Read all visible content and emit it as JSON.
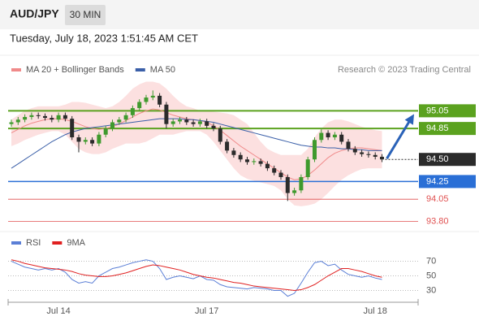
{
  "header": {
    "symbol": "AUD/JPY",
    "interval": "30 MIN",
    "timestamp": "Tuesday, July 18, 2023 1:51:45 AM CET"
  },
  "credit": "Research © 2023 Trading Central",
  "chart_data": [
    {
      "type": "candlestick",
      "categories": [
        null,
        null,
        null,
        null,
        null,
        null,
        null,
        "Jul 14",
        null,
        null,
        null,
        null,
        null,
        null,
        null,
        null,
        null,
        null,
        null,
        null,
        null,
        null,
        null,
        null,
        null,
        null,
        null,
        null,
        null,
        "Jul 17",
        null,
        null,
        null,
        null,
        null,
        null,
        null,
        null,
        null,
        null,
        null,
        null,
        null,
        null,
        null,
        null,
        null,
        null,
        null,
        null,
        null,
        null,
        null,
        null,
        "Jul 18",
        null
      ],
      "open": [
        94.9,
        94.92,
        94.95,
        94.98,
        95.0,
        94.99,
        94.97,
        94.95,
        95.0,
        94.96,
        94.75,
        94.7,
        94.72,
        94.68,
        94.78,
        94.85,
        94.92,
        94.95,
        95.0,
        95.08,
        95.15,
        95.2,
        95.22,
        95.12,
        94.9,
        94.93,
        94.95,
        94.92,
        94.9,
        94.93,
        94.88,
        94.85,
        94.7,
        94.6,
        94.55,
        94.5,
        94.47,
        94.48,
        94.45,
        94.4,
        94.35,
        94.3,
        94.12,
        94.15,
        94.3,
        94.5,
        94.72,
        94.8,
        94.75,
        94.78,
        94.7,
        94.62,
        94.58,
        94.56,
        94.55,
        94.53
      ],
      "high": [
        94.95,
        94.98,
        95.01,
        95.03,
        95.03,
        95.02,
        95.0,
        95.03,
        95.03,
        94.99,
        94.78,
        94.75,
        94.75,
        94.81,
        94.88,
        94.95,
        94.98,
        95.03,
        95.11,
        95.18,
        95.23,
        95.28,
        95.25,
        95.15,
        94.96,
        94.98,
        94.98,
        94.95,
        94.96,
        94.96,
        94.91,
        94.88,
        94.73,
        94.63,
        94.58,
        94.53,
        94.51,
        94.51,
        94.48,
        94.43,
        94.38,
        94.33,
        94.18,
        94.33,
        94.53,
        94.75,
        94.84,
        94.83,
        94.81,
        94.81,
        94.73,
        94.65,
        94.61,
        94.59,
        94.58,
        94.56
      ],
      "low": [
        94.87,
        94.89,
        94.92,
        94.95,
        94.96,
        94.94,
        94.92,
        94.92,
        94.93,
        94.72,
        94.58,
        94.67,
        94.65,
        94.65,
        94.75,
        94.82,
        94.89,
        94.92,
        94.97,
        95.05,
        95.12,
        95.17,
        95.09,
        94.85,
        94.87,
        94.9,
        94.89,
        94.87,
        94.87,
        94.85,
        94.82,
        94.67,
        94.57,
        94.52,
        94.47,
        94.44,
        94.44,
        94.42,
        94.37,
        94.32,
        94.27,
        94.03,
        94.09,
        94.12,
        94.27,
        94.47,
        94.69,
        94.72,
        94.72,
        94.67,
        94.59,
        94.55,
        94.53,
        94.52,
        94.5,
        94.47
      ],
      "close": [
        94.92,
        94.95,
        94.98,
        95.0,
        94.99,
        94.97,
        94.95,
        95.0,
        94.96,
        94.75,
        94.7,
        94.72,
        94.68,
        94.78,
        94.85,
        94.92,
        94.95,
        95.0,
        95.08,
        95.15,
        95.2,
        95.22,
        95.12,
        94.9,
        94.93,
        94.95,
        94.92,
        94.9,
        94.93,
        94.88,
        94.85,
        94.7,
        94.6,
        94.55,
        94.5,
        94.47,
        94.48,
        94.45,
        94.4,
        94.35,
        94.3,
        94.12,
        94.15,
        94.3,
        94.5,
        94.72,
        94.8,
        94.75,
        94.78,
        94.7,
        94.62,
        94.58,
        94.56,
        94.55,
        94.53,
        94.5
      ],
      "color_up": "#3f9a2d",
      "color_down": "#2b2b2b",
      "series": [
        {
          "name": "MA 20 + Bollinger Bands",
          "color": "#f08a8a",
          "band_color": "#fbd3d3",
          "values": [
            94.8,
            94.84,
            94.88,
            94.91,
            94.93,
            94.95,
            94.96,
            94.96,
            94.95,
            94.93,
            94.9,
            94.87,
            94.85,
            94.84,
            94.85,
            94.87,
            94.9,
            94.94,
            94.98,
            95.02,
            95.05,
            95.07,
            95.06,
            95.03,
            95.0,
            94.98,
            94.96,
            94.95,
            94.94,
            94.92,
            94.88,
            94.83,
            94.77,
            94.71,
            94.65,
            94.6,
            94.55,
            94.5,
            94.45,
            94.4,
            94.35,
            94.3,
            94.27,
            94.28,
            94.32,
            94.38,
            94.45,
            94.52,
            94.57,
            94.6,
            94.62,
            94.63,
            94.63,
            94.62,
            94.61,
            94.6
          ],
          "upper": [
            94.95,
            95.0,
            95.05,
            95.08,
            95.1,
            95.1,
            95.1,
            95.1,
            95.12,
            95.15,
            95.15,
            95.14,
            95.12,
            95.1,
            95.08,
            95.1,
            95.15,
            95.22,
            95.3,
            95.35,
            95.38,
            95.38,
            95.36,
            95.3,
            95.22,
            95.15,
            95.1,
            95.08,
            95.05,
            95.05,
            95.04,
            95.03,
            95.02,
            95.0,
            94.95,
            94.9,
            94.8,
            94.7,
            94.62,
            94.58,
            94.55,
            94.55,
            94.55,
            94.55,
            94.62,
            94.75,
            94.85,
            94.92,
            94.95,
            94.95,
            94.93,
            94.9,
            94.87,
            94.85,
            94.83,
            94.82
          ],
          "lower": [
            94.65,
            94.68,
            94.72,
            94.75,
            94.78,
            94.8,
            94.82,
            94.82,
            94.78,
            94.7,
            94.62,
            94.58,
            94.56,
            94.56,
            94.58,
            94.62,
            94.65,
            94.68,
            94.68,
            94.68,
            94.7,
            94.74,
            94.78,
            94.78,
            94.78,
            94.8,
            94.82,
            94.82,
            94.82,
            94.78,
            94.7,
            94.6,
            94.5,
            94.4,
            94.32,
            94.28,
            94.26,
            94.24,
            94.22,
            94.2,
            94.15,
            94.05,
            93.98,
            93.97,
            93.98,
            94.0,
            94.05,
            94.12,
            94.2,
            94.27,
            94.32,
            94.36,
            94.39,
            94.4,
            94.4,
            94.4
          ]
        },
        {
          "name": "MA 50",
          "color": "#3a5fa8",
          "values": [
            94.4,
            94.45,
            94.5,
            94.55,
            94.6,
            94.65,
            94.7,
            94.74,
            94.78,
            94.81,
            94.83,
            94.85,
            94.86,
            94.87,
            94.88,
            94.89,
            94.9,
            94.91,
            94.92,
            94.93,
            94.94,
            94.95,
            94.96,
            94.96,
            94.96,
            94.96,
            94.95,
            94.95,
            94.94,
            94.93,
            94.92,
            94.9,
            94.88,
            94.86,
            94.84,
            94.82,
            94.8,
            94.78,
            94.76,
            94.74,
            94.72,
            94.7,
            94.68,
            94.66,
            94.65,
            94.64,
            94.64,
            94.63,
            94.63,
            94.62,
            94.62,
            94.61,
            94.61,
            94.6,
            94.6,
            94.6
          ]
        }
      ],
      "ylim": [
        93.73,
        95.43
      ],
      "levels": {
        "values": [
          95.05,
          94.85,
          94.5,
          94.25,
          94.05,
          93.8
        ],
        "value_labels": [
          "95.05",
          "94.85",
          "94.50",
          "94.25",
          "94.05",
          "93.80"
        ],
        "colors": [
          "#5ba21f",
          "#5ba21f",
          "#2b2b2b",
          "#2a6fd6",
          "#e05050",
          "#e05050"
        ],
        "styles": [
          "box",
          "box",
          "dotted",
          "box",
          "text",
          "text"
        ]
      },
      "forecast_color": "#2a62b8"
    },
    {
      "type": "line",
      "series": [
        {
          "name": "RSI",
          "color": "#5b7fd6",
          "values": [
            70,
            66,
            62,
            60,
            58,
            60,
            58,
            60,
            55,
            45,
            40,
            42,
            40,
            50,
            55,
            60,
            62,
            65,
            68,
            70,
            72,
            70,
            60,
            45,
            48,
            50,
            48,
            46,
            50,
            45,
            44,
            38,
            35,
            34,
            33,
            32,
            34,
            33,
            32,
            30,
            30,
            22,
            26,
            40,
            55,
            68,
            70,
            64,
            66,
            58,
            52,
            50,
            48,
            50,
            47,
            45
          ]
        },
        {
          "name": "9MA",
          "color": "#e02020",
          "values": [
            72,
            70,
            67,
            65,
            63,
            61,
            60,
            59,
            58,
            56,
            53,
            51,
            50,
            49,
            49,
            50,
            52,
            54,
            57,
            60,
            63,
            65,
            64,
            62,
            60,
            58,
            55,
            52,
            50,
            48,
            47,
            45,
            43,
            41,
            40,
            38,
            36,
            35,
            34,
            33,
            32,
            31,
            30,
            31,
            34,
            38,
            44,
            50,
            55,
            60,
            60,
            58,
            56,
            53,
            50,
            48
          ]
        }
      ],
      "ylim": [
        16,
        84
      ],
      "yticks": [
        70,
        50,
        30
      ],
      "grid": true
    }
  ]
}
